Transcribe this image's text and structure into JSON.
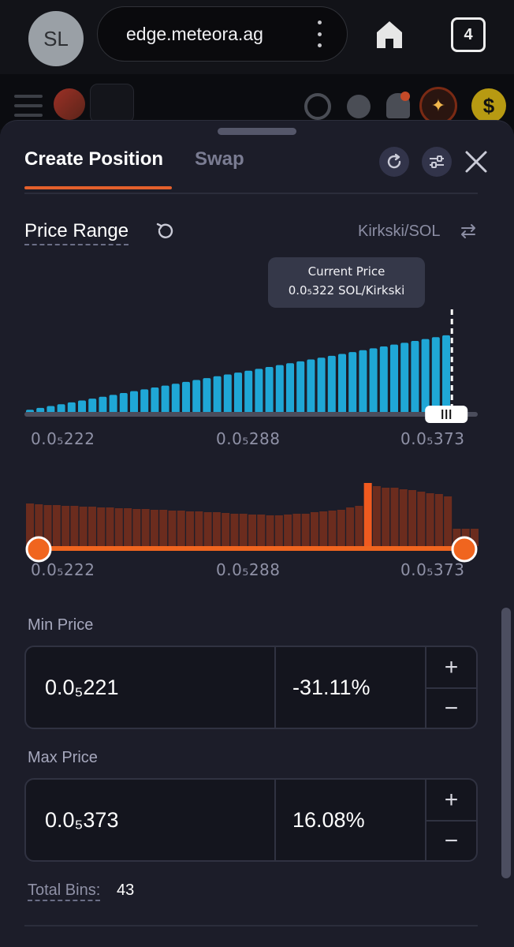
{
  "browser": {
    "avatar_initials": "SL",
    "url": "edge.meteora.ag",
    "tab_count": "4"
  },
  "tabs": [
    {
      "label": "Create Position",
      "active": true
    },
    {
      "label": "Swap",
      "active": false
    }
  ],
  "price_range": {
    "title": "Price Range",
    "pair": "Kirkski/SOL"
  },
  "tooltip": {
    "title": "Current Price",
    "value": "0.0₅322 SOL/Kirkski"
  },
  "chart_data": [
    {
      "type": "bar",
      "description_axis": [
        "0.0₅222",
        "0.0₅288",
        "0.0₅373"
      ],
      "bar_color": "#1fa7d6",
      "values": [
        4,
        6,
        8,
        10,
        12,
        14,
        16,
        18,
        20,
        22,
        24,
        26,
        28,
        30,
        32,
        34,
        36,
        38,
        40,
        42,
        44,
        46,
        48,
        50,
        52,
        54,
        56,
        58,
        60,
        62,
        64,
        66,
        68,
        70,
        72,
        74,
        76,
        78,
        80,
        82,
        84
      ],
      "current_price_index": 41,
      "ylim": [
        0,
        100
      ]
    },
    {
      "type": "bar",
      "description_axis": [
        "0.0₅222",
        "0.0₅288",
        "0.0₅373"
      ],
      "bar_color": "#6b2c1e",
      "highlight_color": "#f05a1f",
      "values": [
        54,
        53,
        52,
        52,
        51,
        51,
        50,
        50,
        49,
        49,
        48,
        48,
        47,
        47,
        46,
        46,
        45,
        45,
        44,
        44,
        43,
        43,
        42,
        41,
        41,
        40,
        40,
        39,
        39,
        40,
        41,
        41,
        43,
        44,
        45,
        46,
        49,
        51,
        80,
        76,
        74,
        74,
        72,
        71,
        69,
        67,
        66,
        63,
        22,
        22,
        22
      ],
      "highlight_index": 38,
      "ylim": [
        0,
        80
      ]
    }
  ],
  "range_slider": {
    "min_label": "0.0₅222",
    "mid_label": "0.0₅288",
    "max_label": "0.0₅373",
    "accent": "#f0651f"
  },
  "min_price": {
    "label": "Min Price",
    "value": "0.0₅221",
    "percent": "-31.11%"
  },
  "max_price": {
    "label": "Max Price",
    "value": "0.0₅373",
    "percent": "16.08%"
  },
  "stepper": {
    "plus": "+",
    "minus": "−"
  },
  "total_bins": {
    "label": "Total Bins:",
    "value": "43"
  },
  "colors": {
    "accent": "#e4602c",
    "liquidity": "#1fa7d6",
    "background": "#1c1d29"
  }
}
